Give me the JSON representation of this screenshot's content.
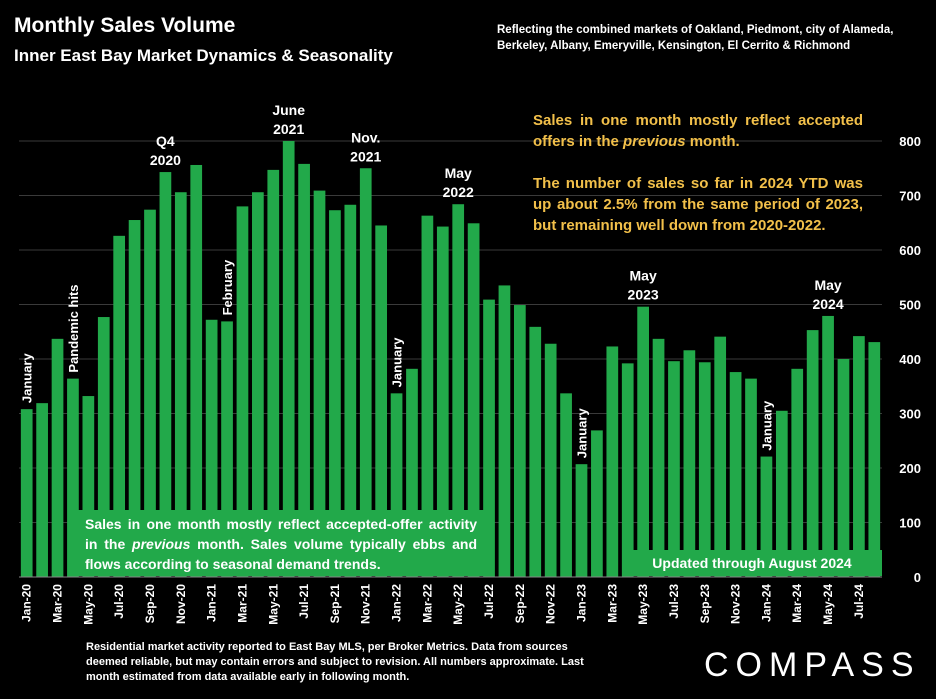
{
  "header": {
    "title": "Monthly Sales Volume",
    "subtitle": "Inner East Bay Market Dynamics & Seasonality",
    "reflecting": "Reflecting the combined markets of Oakland, Piedmont, city of Alameda, Berkeley, Albany, Emeryville, Kensington, El Cerrito & Richmond"
  },
  "notes": {
    "gold_1_a": "Sales in one month mostly reflect accepted offers in the ",
    "gold_1_em": "previous",
    "gold_1_b": " month.",
    "gold_2": "The number of sales so far in 2024 YTD was up about 2.5% from the same period of 2023, but remaining well down from 2020-2022.",
    "green_a": "Sales in one month mostly reflect accepted-offer activity in the ",
    "green_em": "previous",
    "green_b": " month. Sales volume typically ebbs and flows according to seasonal demand trends.",
    "updated": "Updated through August 2024"
  },
  "footer": {
    "disclaimer": "Residential market activity reported to East Bay MLS, per Broker Metrics. Data from sources deemed reliable, but may contain errors and subject to revision. All numbers approximate. Last month estimated from data available early in following month.",
    "logo": "COMPASS"
  },
  "colors": {
    "bar": "#22a94a",
    "background": "#000000",
    "note": "#f2c04a",
    "text": "#ffffff"
  },
  "chart_data": {
    "type": "bar",
    "categories": [
      "Jan-20",
      "Feb-20",
      "Mar-20",
      "Apr-20",
      "May-20",
      "Jun-20",
      "Jul-20",
      "Aug-20",
      "Sep-20",
      "Oct-20",
      "Nov-20",
      "Dec-20",
      "Jan-21",
      "Feb-21",
      "Mar-21",
      "Apr-21",
      "May-21",
      "Jun-21",
      "Jul-21",
      "Aug-21",
      "Sep-21",
      "Oct-21",
      "Nov-21",
      "Dec-21",
      "Jan-22",
      "Feb-22",
      "Mar-22",
      "Apr-22",
      "May-22",
      "Jun-22",
      "Jul-22",
      "Aug-22",
      "Sep-22",
      "Oct-22",
      "Nov-22",
      "Dec-22",
      "Jan-23",
      "Feb-23",
      "Mar-23",
      "Apr-23",
      "May-23",
      "Jun-23",
      "Jul-23",
      "Aug-23",
      "Sep-23",
      "Oct-23",
      "Nov-23",
      "Dec-23",
      "Jan-24",
      "Feb-24",
      "Mar-24",
      "Apr-24",
      "May-24",
      "Jun-24",
      "Jul-24",
      "Aug-24"
    ],
    "x_tick_labels": [
      "Jan-20",
      "Mar-20",
      "May-20",
      "Jul-20",
      "Sep-20",
      "Nov-20",
      "Jan-21",
      "Mar-21",
      "May-21",
      "Jul-21",
      "Sep-21",
      "Nov-21",
      "Jan-22",
      "Mar-22",
      "May-22",
      "Jul-22",
      "Sep-22",
      "Nov-22",
      "Jan-23",
      "Mar-23",
      "May-23",
      "Jul-23",
      "Sep-23",
      "Nov-23",
      "Jan-24",
      "Mar-24",
      "May-24",
      "Jul-24"
    ],
    "values": [
      308,
      319,
      437,
      364,
      332,
      477,
      626,
      655,
      674,
      743,
      706,
      756,
      472,
      469,
      680,
      706,
      747,
      800,
      758,
      709,
      673,
      683,
      750,
      645,
      337,
      382,
      663,
      643,
      684,
      649,
      509,
      535,
      499,
      459,
      428,
      337,
      207,
      269,
      423,
      392,
      496,
      437,
      396,
      416,
      394,
      441,
      376,
      364,
      221,
      305,
      382,
      453,
      479,
      400,
      442,
      431
    ],
    "ylim": [
      0,
      800
    ],
    "yticks": [
      0,
      100,
      200,
      300,
      400,
      500,
      600,
      700,
      800
    ],
    "annotations": [
      {
        "text": "January",
        "index": 0,
        "vertical": true
      },
      {
        "text": "Pandemic hits",
        "index": 3,
        "vertical": true
      },
      {
        "text": "Q4 2020",
        "index": 9,
        "vertical": false
      },
      {
        "text": "February",
        "index": 13,
        "vertical": true
      },
      {
        "text": "June 2021",
        "index": 17,
        "vertical": false
      },
      {
        "text": "Nov. 2021",
        "index": 22,
        "vertical": false
      },
      {
        "text": "January",
        "index": 24,
        "vertical": true
      },
      {
        "text": "May 2022",
        "index": 28,
        "vertical": false
      },
      {
        "text": "January",
        "index": 36,
        "vertical": true
      },
      {
        "text": "May 2023",
        "index": 40,
        "vertical": false
      },
      {
        "text": "January",
        "index": 48,
        "vertical": true
      },
      {
        "text": "May 2024",
        "index": 52,
        "vertical": false
      }
    ]
  }
}
